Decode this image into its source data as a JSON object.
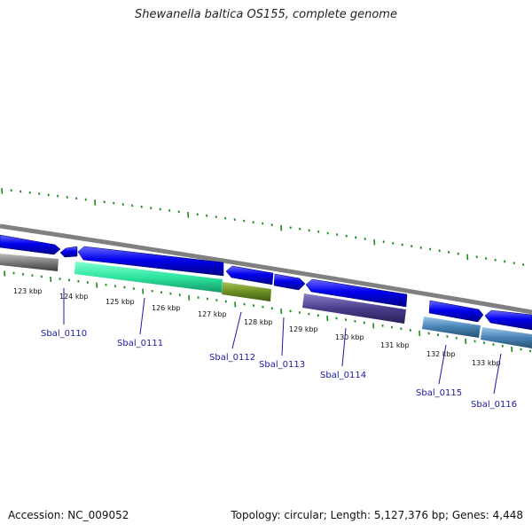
{
  "title": "Shewanella baltica OS155, complete genome",
  "accession": "Accession: NC_009052",
  "summary": "Topology: circular; Length: 5,127,376 bp; Genes: 4,448",
  "kbp_ticks": [
    "123 kbp",
    "124 kbp",
    "125 kbp",
    "126 kbp",
    "127 kbp",
    "128 kbp",
    "129 kbp",
    "130 kbp",
    "131 kbp",
    "132 kbp",
    "133 kbp"
  ],
  "genes": [
    {
      "label": "Sbal_0110",
      "color": "#5c5c5c"
    },
    {
      "label": "Sbal_0111",
      "color": "#33eeaa"
    },
    {
      "label": "Sbal_0112",
      "color": "#6b8e23"
    },
    {
      "label": "Sbal_0113",
      "color": "#0000ee"
    },
    {
      "label": "Sbal_0114",
      "color": "#483d8b"
    },
    {
      "label": "Sbal_0115",
      "color": "#4682b4"
    },
    {
      "label": "Sbal_0116",
      "color": "#4682b4"
    }
  ],
  "colors": {
    "cds_forward": "#0000ee",
    "backbone": "#808080",
    "tick_green": "#1a8a1a"
  }
}
